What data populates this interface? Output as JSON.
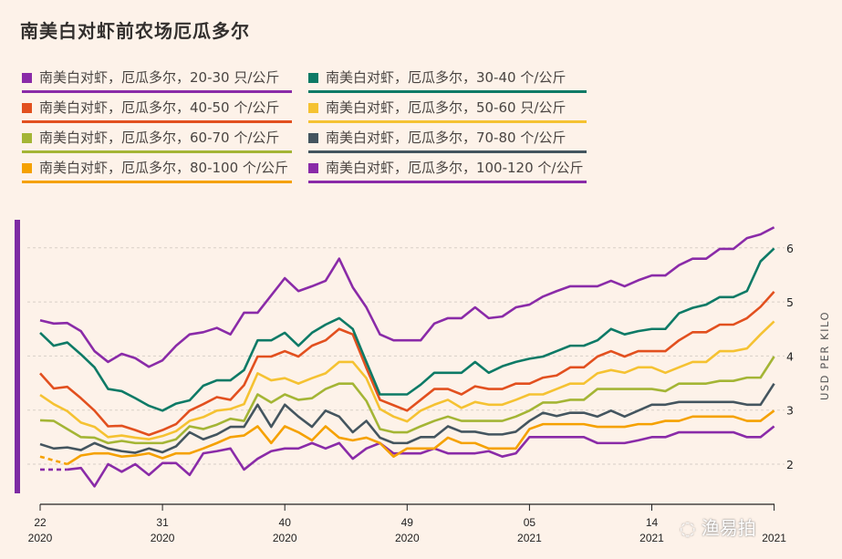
{
  "title": "南美白对虾前农场厄瓜多尔",
  "watermark": "渔易拍",
  "chart_data": {
    "type": "line",
    "title": "南美白对虾前农场厄瓜多尔",
    "ylabel": "USD PER KILO",
    "ylim": [
      1.5,
      6.5
    ],
    "yticks": [
      "2",
      "3",
      "4",
      "5",
      "6"
    ],
    "grid": true,
    "legend_placement": "top",
    "x_ticks": [
      {
        "week": "22",
        "year": "2020"
      },
      {
        "week": "31",
        "year": "2020"
      },
      {
        "week": "40",
        "year": "2020"
      },
      {
        "week": "49",
        "year": "2020"
      },
      {
        "week": "05",
        "year": "2021"
      },
      {
        "week": "14",
        "year": "2021"
      },
      {
        "week": "",
        "year": "2021"
      }
    ],
    "x_range": "week 22 2020 – week 23 2021 (weekly)",
    "series": [
      {
        "name": "南美白对虾，厄瓜多尔，20-30 只/公斤",
        "color": "#8a2ba8",
        "values": [
          4.66,
          4.6,
          4.61,
          4.46,
          4.09,
          3.89,
          4.04,
          3.96,
          3.8,
          3.92,
          4.19,
          4.4,
          4.44,
          4.52,
          4.4,
          4.8,
          4.8,
          5.12,
          5.44,
          5.2,
          5.29,
          5.39,
          5.8,
          5.27,
          4.9,
          4.4,
          4.29,
          4.29,
          4.29,
          4.6,
          4.7,
          4.7,
          4.9,
          4.7,
          4.73,
          4.9,
          4.95,
          5.1,
          5.2,
          5.29,
          5.29,
          5.29,
          5.39,
          5.29,
          5.4,
          5.49,
          5.49,
          5.68,
          5.8,
          5.8,
          5.98,
          5.98,
          6.18,
          6.25,
          6.38
        ]
      },
      {
        "name": "南美白对虾，厄瓜多尔，30-40 个/公斤",
        "color": "#0d7a66",
        "values": [
          4.43,
          4.19,
          4.25,
          4.03,
          3.79,
          3.39,
          3.35,
          3.22,
          3.08,
          2.99,
          3.12,
          3.18,
          3.45,
          3.55,
          3.55,
          3.74,
          4.29,
          4.29,
          4.43,
          4.19,
          4.43,
          4.58,
          4.7,
          4.5,
          3.89,
          3.29,
          3.29,
          3.29,
          3.47,
          3.69,
          3.69,
          3.69,
          3.89,
          3.69,
          3.81,
          3.89,
          3.95,
          3.99,
          4.09,
          4.19,
          4.19,
          4.29,
          4.5,
          4.4,
          4.46,
          4.5,
          4.5,
          4.79,
          4.89,
          4.95,
          5.09,
          5.09,
          5.2,
          5.75,
          5.99
        ]
      },
      {
        "name": "南美白对虾，厄瓜多尔，40-50 个/公斤",
        "color": "#e2501f",
        "values": [
          3.68,
          3.4,
          3.43,
          3.22,
          2.99,
          2.7,
          2.71,
          2.63,
          2.54,
          2.63,
          2.74,
          2.99,
          3.11,
          3.24,
          3.19,
          3.46,
          3.99,
          3.99,
          4.09,
          3.99,
          4.19,
          4.29,
          4.5,
          4.4,
          3.78,
          3.19,
          3.09,
          2.99,
          3.19,
          3.39,
          3.39,
          3.29,
          3.44,
          3.39,
          3.39,
          3.49,
          3.49,
          3.6,
          3.64,
          3.79,
          3.79,
          3.99,
          4.09,
          3.99,
          4.09,
          4.09,
          4.09,
          4.29,
          4.44,
          4.44,
          4.58,
          4.58,
          4.7,
          4.91,
          5.19
        ]
      },
      {
        "name": "南美白对虾，厄瓜多尔，50-60 只/公斤",
        "color": "#f5c232",
        "values": [
          3.28,
          3.11,
          2.98,
          2.77,
          2.69,
          2.5,
          2.53,
          2.49,
          2.46,
          2.52,
          2.61,
          2.8,
          2.87,
          2.99,
          3.02,
          3.11,
          3.68,
          3.55,
          3.59,
          3.49,
          3.59,
          3.68,
          3.89,
          3.89,
          3.59,
          3.02,
          2.88,
          2.79,
          2.99,
          3.1,
          3.19,
          3.04,
          3.15,
          3.1,
          3.1,
          3.19,
          3.29,
          3.29,
          3.39,
          3.49,
          3.49,
          3.68,
          3.74,
          3.69,
          3.79,
          3.79,
          3.69,
          3.79,
          3.89,
          3.89,
          4.09,
          4.09,
          4.14,
          4.4,
          4.64
        ]
      },
      {
        "name": "南美白对虾，厄瓜多尔，60-70 个/公斤",
        "color": "#a4b535",
        "values": [
          2.81,
          2.8,
          2.65,
          2.5,
          2.49,
          2.39,
          2.43,
          2.39,
          2.39,
          2.39,
          2.46,
          2.7,
          2.65,
          2.73,
          2.84,
          2.8,
          3.29,
          3.14,
          3.29,
          3.19,
          3.22,
          3.39,
          3.49,
          3.49,
          3.17,
          2.65,
          2.59,
          2.59,
          2.7,
          2.8,
          2.88,
          2.8,
          2.8,
          2.8,
          2.8,
          2.88,
          2.99,
          3.14,
          3.14,
          3.19,
          3.19,
          3.39,
          3.39,
          3.39,
          3.39,
          3.39,
          3.35,
          3.49,
          3.49,
          3.49,
          3.54,
          3.54,
          3.6,
          3.6,
          3.99
        ]
      },
      {
        "name": "南美白对虾，厄瓜多尔，70-80 个/公斤",
        "color": "#44555f",
        "values": [
          2.37,
          2.29,
          2.31,
          2.26,
          2.39,
          2.29,
          2.24,
          2.21,
          2.29,
          2.22,
          2.33,
          2.59,
          2.46,
          2.55,
          2.69,
          2.69,
          3.1,
          2.69,
          3.1,
          2.88,
          2.69,
          2.99,
          2.88,
          2.59,
          2.8,
          2.49,
          2.39,
          2.39,
          2.5,
          2.5,
          2.7,
          2.6,
          2.6,
          2.55,
          2.55,
          2.6,
          2.8,
          2.95,
          2.89,
          2.95,
          2.95,
          2.88,
          2.99,
          2.88,
          2.99,
          3.1,
          3.1,
          3.15,
          3.15,
          3.15,
          3.15,
          3.15,
          3.1,
          3.1,
          3.49
        ]
      },
      {
        "name": "南美白对虾，厄瓜多尔，80-100 个/公斤",
        "color": "#f5a100",
        "values": [
          2.14,
          2.07,
          2.0,
          2.16,
          2.2,
          2.2,
          2.14,
          2.16,
          2.2,
          2.11,
          2.2,
          2.2,
          2.29,
          2.39,
          2.5,
          2.53,
          2.7,
          2.39,
          2.7,
          2.59,
          2.44,
          2.7,
          2.49,
          2.44,
          2.49,
          2.39,
          2.14,
          2.29,
          2.29,
          2.29,
          2.49,
          2.39,
          2.39,
          2.29,
          2.29,
          2.29,
          2.65,
          2.74,
          2.74,
          2.74,
          2.74,
          2.69,
          2.69,
          2.69,
          2.74,
          2.74,
          2.8,
          2.8,
          2.88,
          2.88,
          2.88,
          2.88,
          2.8,
          2.8,
          2.99
        ]
      },
      {
        "name": "南美白对虾，厄瓜多尔，100-120 个/公斤",
        "color": "#8a2ba8",
        "values": [
          1.9,
          1.9,
          1.9,
          1.93,
          1.59,
          2.0,
          1.86,
          2.0,
          1.8,
          2.02,
          2.02,
          1.8,
          2.2,
          2.24,
          2.29,
          1.9,
          2.1,
          2.24,
          2.29,
          2.29,
          2.39,
          2.29,
          2.39,
          2.1,
          2.29,
          2.39,
          2.2,
          2.2,
          2.2,
          2.29,
          2.2,
          2.2,
          2.2,
          2.24,
          2.14,
          2.2,
          2.5,
          2.5,
          2.5,
          2.5,
          2.5,
          2.39,
          2.39,
          2.39,
          2.44,
          2.5,
          2.5,
          2.59,
          2.59,
          2.59,
          2.59,
          2.59,
          2.5,
          2.5,
          2.7
        ]
      }
    ]
  }
}
